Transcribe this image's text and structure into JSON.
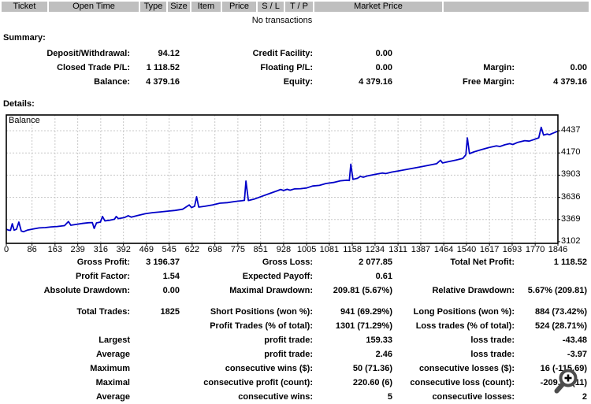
{
  "transactions_table": {
    "columns": [
      "Ticket",
      "Open Time",
      "Type",
      "Size",
      "Item",
      "Price",
      "S / L",
      "T / P",
      "Market Price",
      ""
    ],
    "empty_message": "No transactions"
  },
  "summary": {
    "heading": "Summary:",
    "rows": [
      [
        "Deposit/Withdrawal:",
        "94.12",
        "Credit Facility:",
        "0.00",
        "",
        ""
      ],
      [
        "Closed Trade P/L:",
        "1 118.52",
        "Floating P/L:",
        "0.00",
        "Margin:",
        "0.00"
      ],
      [
        "Balance:",
        "4 379.16",
        "Equity:",
        "4 379.16",
        "Free Margin:",
        "4 379.16"
      ]
    ]
  },
  "details": {
    "heading": "Details:",
    "rows": [
      [
        "Gross Profit:",
        "3 196.37",
        "Gross Loss:",
        "2 077.85",
        "Total Net Profit:",
        "1 118.52"
      ],
      [
        "Profit Factor:",
        "1.54",
        "Expected Payoff:",
        "0.61",
        "",
        ""
      ],
      [
        "Absolute Drawdown:",
        "0.00",
        "Maximal Drawdown:",
        "209.81 (5.67%)",
        "Relative Drawdown:",
        "5.67% (209.81)"
      ],
      [
        "Total Trades:",
        "1825",
        "Short Positions (won %):",
        "941 (69.29%)",
        "Long Positions (won %):",
        "884 (73.42%)"
      ],
      [
        "",
        "",
        "Profit Trades (% of total):",
        "1301 (71.29%)",
        "Loss trades (% of total):",
        "524 (28.71%)"
      ],
      [
        "Largest",
        "",
        "profit trade:",
        "159.33",
        "loss trade:",
        "-43.48"
      ],
      [
        "Average",
        "",
        "profit trade:",
        "2.46",
        "loss trade:",
        "-3.97"
      ],
      [
        "Maximum",
        "",
        "consecutive wins ($):",
        "50 (71.36)",
        "consecutive losses ($):",
        "16 (-115.69)"
      ],
      [
        "Maximal",
        "",
        "consecutive profit (count):",
        "220.60 (6)",
        "consecutive loss (count):",
        "-209.81 (11)"
      ],
      [
        "Average",
        "",
        "consecutive wins:",
        "5",
        "consecutive losses:",
        "2"
      ]
    ]
  },
  "chart_data": {
    "type": "line",
    "title": "Balance",
    "xlabel": "",
    "ylabel": "",
    "xlim": [
      0,
      1846
    ],
    "ylim": [
      3082,
      4627
    ],
    "grid": true,
    "legend_position": "none",
    "line_color": "#0000c8",
    "grid_color": "#c8c8c8",
    "frame_color": "#000000",
    "x_ticks": [
      0,
      86,
      163,
      239,
      316,
      392,
      469,
      545,
      622,
      698,
      775,
      851,
      928,
      1005,
      1081,
      1158,
      1234,
      1311,
      1387,
      1464,
      1540,
      1617,
      1693,
      1770,
      1846
    ],
    "y_ticks": [
      4437,
      4170,
      3903,
      3636,
      3369,
      3102
    ],
    "series": [
      {
        "name": "Balance",
        "points": [
          [
            0,
            3252
          ],
          [
            8,
            3240
          ],
          [
            14,
            3238
          ],
          [
            20,
            3318
          ],
          [
            26,
            3240
          ],
          [
            34,
            3252
          ],
          [
            42,
            3338
          ],
          [
            50,
            3230
          ],
          [
            58,
            3222
          ],
          [
            70,
            3240
          ],
          [
            90,
            3255
          ],
          [
            110,
            3268
          ],
          [
            130,
            3272
          ],
          [
            150,
            3280
          ],
          [
            170,
            3285
          ],
          [
            195,
            3295
          ],
          [
            208,
            3345
          ],
          [
            216,
            3300
          ],
          [
            235,
            3310
          ],
          [
            255,
            3322
          ],
          [
            275,
            3330
          ],
          [
            288,
            3332
          ],
          [
            294,
            3262
          ],
          [
            302,
            3328
          ],
          [
            315,
            3338
          ],
          [
            322,
            3405
          ],
          [
            330,
            3352
          ],
          [
            345,
            3360
          ],
          [
            362,
            3372
          ],
          [
            368,
            3405
          ],
          [
            375,
            3380
          ],
          [
            395,
            3392
          ],
          [
            408,
            3415
          ],
          [
            418,
            3398
          ],
          [
            440,
            3418
          ],
          [
            465,
            3438
          ],
          [
            490,
            3452
          ],
          [
            515,
            3460
          ],
          [
            540,
            3470
          ],
          [
            565,
            3478
          ],
          [
            590,
            3492
          ],
          [
            612,
            3545
          ],
          [
            620,
            3512
          ],
          [
            630,
            3528
          ],
          [
            637,
            3642
          ],
          [
            644,
            3518
          ],
          [
            665,
            3528
          ],
          [
            690,
            3545
          ],
          [
            715,
            3565
          ],
          [
            740,
            3572
          ],
          [
            765,
            3585
          ],
          [
            788,
            3595
          ],
          [
            797,
            3600
          ],
          [
            802,
            3832
          ],
          [
            810,
            3598
          ],
          [
            830,
            3615
          ],
          [
            855,
            3648
          ],
          [
            880,
            3680
          ],
          [
            905,
            3712
          ],
          [
            918,
            3730
          ],
          [
            928,
            3718
          ],
          [
            940,
            3732
          ],
          [
            950,
            3722
          ],
          [
            965,
            3738
          ],
          [
            985,
            3740
          ],
          [
            1005,
            3748
          ],
          [
            1025,
            3772
          ],
          [
            1048,
            3780
          ],
          [
            1070,
            3802
          ],
          [
            1095,
            3815
          ],
          [
            1118,
            3835
          ],
          [
            1140,
            3842
          ],
          [
            1148,
            3838
          ],
          [
            1153,
            4035
          ],
          [
            1160,
            3852
          ],
          [
            1175,
            3865
          ],
          [
            1185,
            3888
          ],
          [
            1195,
            3878
          ],
          [
            1210,
            3895
          ],
          [
            1235,
            3912
          ],
          [
            1258,
            3928
          ],
          [
            1270,
            3922
          ],
          [
            1290,
            3940
          ],
          [
            1315,
            3955
          ],
          [
            1340,
            3972
          ],
          [
            1365,
            3988
          ],
          [
            1390,
            4005
          ],
          [
            1415,
            4022
          ],
          [
            1440,
            4040
          ],
          [
            1453,
            4082
          ],
          [
            1460,
            4050
          ],
          [
            1480,
            4065
          ],
          [
            1505,
            4085
          ],
          [
            1528,
            4105
          ],
          [
            1538,
            4148
          ],
          [
            1543,
            4350
          ],
          [
            1550,
            4162
          ],
          [
            1565,
            4182
          ],
          [
            1590,
            4210
          ],
          [
            1615,
            4235
          ],
          [
            1640,
            4255
          ],
          [
            1652,
            4248
          ],
          [
            1668,
            4268
          ],
          [
            1685,
            4282
          ],
          [
            1695,
            4272
          ],
          [
            1712,
            4298
          ],
          [
            1735,
            4318
          ],
          [
            1750,
            4312
          ],
          [
            1765,
            4330
          ],
          [
            1782,
            4352
          ],
          [
            1790,
            4478
          ],
          [
            1798,
            4385
          ],
          [
            1810,
            4398
          ],
          [
            1818,
            4390
          ],
          [
            1830,
            4408
          ],
          [
            1846,
            4432
          ]
        ]
      }
    ]
  },
  "overlay": {
    "zoom_cursor": "magnifier-plus",
    "zoom_cursor_color": "#4d4d4d"
  },
  "colors": {
    "header_bg": "#bfbfbf",
    "text": "#000000",
    "line": "#0000c8"
  }
}
